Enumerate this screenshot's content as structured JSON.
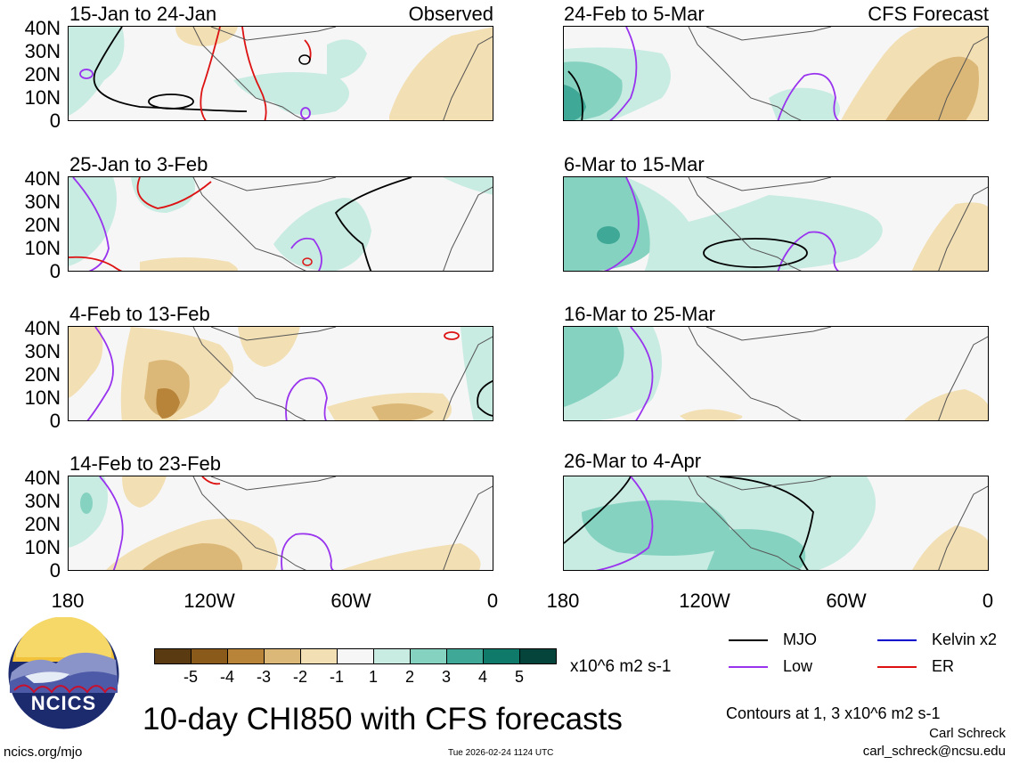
{
  "panels_left": [
    {
      "period": "15-Jan to 24-Jan",
      "label": "Observed"
    },
    {
      "period": "25-Jan to 3-Feb",
      "label": ""
    },
    {
      "period": "4-Feb to 13-Feb",
      "label": ""
    },
    {
      "period": "14-Feb to 23-Feb",
      "label": ""
    }
  ],
  "panels_right": [
    {
      "period": "24-Feb to 5-Mar",
      "label": "CFS Forecast"
    },
    {
      "period": "6-Mar to 15-Mar",
      "label": ""
    },
    {
      "period": "16-Mar to 25-Mar",
      "label": ""
    },
    {
      "period": "26-Mar to 4-Apr",
      "label": ""
    }
  ],
  "lat_labels": [
    "40N",
    "30N",
    "20N",
    "10N",
    "0"
  ],
  "lon_labels": [
    "180",
    "120W",
    "60W",
    "0"
  ],
  "colorbar": {
    "labels": [
      "-5",
      "-4",
      "-3",
      "-2",
      "-1",
      "1",
      "2",
      "3",
      "4",
      "5"
    ],
    "colors": [
      "#5a3a10",
      "#8a5a1a",
      "#b8843a",
      "#dcb878",
      "#f2dfb4",
      "#f6f6f6",
      "#c8ebe2",
      "#86d2c0",
      "#3fa896",
      "#0f7a6a",
      "#04443a"
    ],
    "units": "x10^6 m2 s-1"
  },
  "title": "10-day CHI850 with CFS forecasts",
  "legend": {
    "items": [
      {
        "name": "MJO",
        "color": "#000000"
      },
      {
        "name": "Kelvin x2",
        "color": "#0000cc"
      },
      {
        "name": "Low",
        "color": "#9933ee"
      },
      {
        "name": "ER",
        "color": "#dd1111"
      }
    ],
    "contours_note": "Contours at 1, 3 x10^6 m2 s-1"
  },
  "author": "Carl Schreck",
  "email": "carl_schreck@ncsu.edu",
  "site": "ncics.org/mjo",
  "timestamp": "Tue 2026-02-24 1124 UTC",
  "logo_text": "NCICS"
}
